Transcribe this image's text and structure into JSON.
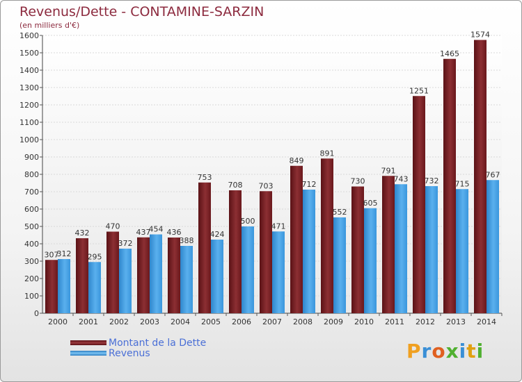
{
  "title": "Revenus/Dette - CONTAMINE-SARZIN",
  "subtitle": "(en milliers d'€)",
  "chart_data": {
    "type": "bar",
    "categories": [
      "2000",
      "2001",
      "2002",
      "2003",
      "2004",
      "2005",
      "2006",
      "2007",
      "2008",
      "2009",
      "2010",
      "2011",
      "2012",
      "2013",
      "2014"
    ],
    "series": [
      {
        "name": "Montant de la Dette",
        "color": "#7a1e22",
        "values": [
          307,
          432,
          470,
          437,
          436,
          753,
          708,
          703,
          849,
          891,
          730,
          791,
          1251,
          1465,
          1574
        ]
      },
      {
        "name": "Revenus",
        "color": "#3d9be0",
        "values": [
          312,
          295,
          372,
          454,
          388,
          424,
          500,
          471,
          712,
          552,
          605,
          743,
          732,
          715,
          767
        ]
      }
    ],
    "ylim": [
      0,
      1600
    ],
    "yticks": [
      0,
      100,
      200,
      300,
      400,
      500,
      600,
      700,
      800,
      900,
      1000,
      1100,
      1200,
      1300,
      1400,
      1500,
      1600
    ],
    "grid": true,
    "legend_position": "bottom-left"
  },
  "legend": {
    "debt_label": "Montant de la Dette",
    "revenue_label": "Revenus"
  },
  "logo": {
    "letters": [
      "P",
      "r",
      "o",
      "x",
      "i",
      "t",
      "i"
    ],
    "colors": [
      "#f0a020",
      "#3a8fd6",
      "#e06020",
      "#50b030",
      "#3a8fd6",
      "#e0a010",
      "#50b030"
    ]
  }
}
